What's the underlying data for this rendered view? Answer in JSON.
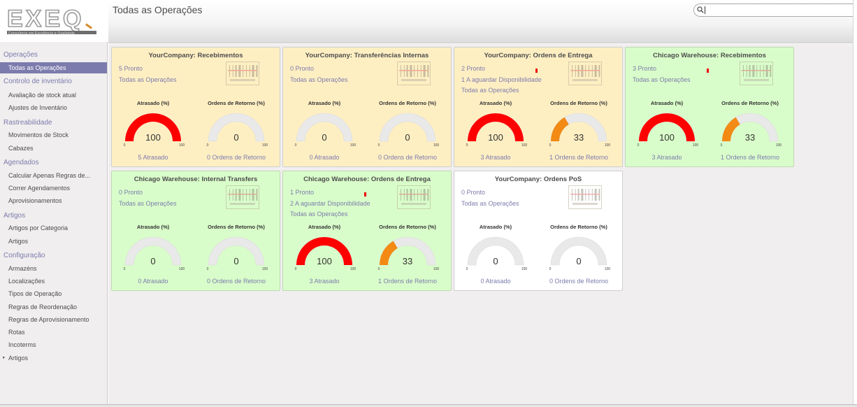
{
  "header": {
    "title": "Todas as Operações",
    "search_value": ""
  },
  "logo": {
    "word": "EXEQ",
    "subtitle": "Consultoria em Excelência e Qualidade"
  },
  "sidebar": [
    {
      "type": "section",
      "label": "Operações"
    },
    {
      "type": "item",
      "label": "Todas as Operações",
      "active": true
    },
    {
      "type": "section",
      "label": "Controlo de inventário"
    },
    {
      "type": "item",
      "label": "Avaliação de stock atual"
    },
    {
      "type": "item",
      "label": "Ajustes de Inventário"
    },
    {
      "type": "section",
      "label": "Rastreabilidade"
    },
    {
      "type": "item",
      "label": "Movimentos de Stock"
    },
    {
      "type": "item",
      "label": "Cabazes"
    },
    {
      "type": "section",
      "label": "Agendados"
    },
    {
      "type": "item",
      "label": "Calcular Apenas Regras de..."
    },
    {
      "type": "item",
      "label": "Correr Agendamentos"
    },
    {
      "type": "item",
      "label": "Aprovisionamentos"
    },
    {
      "type": "section",
      "label": "Artigos"
    },
    {
      "type": "item",
      "label": "Artigos por Categoria"
    },
    {
      "type": "item",
      "label": "Artigos"
    },
    {
      "type": "section",
      "label": "Configuração"
    },
    {
      "type": "item",
      "label": "Armazéns"
    },
    {
      "type": "item",
      "label": "Localizações"
    },
    {
      "type": "item",
      "label": "Tipos de Operação"
    },
    {
      "type": "item",
      "label": "Regras de Reordenação"
    },
    {
      "type": "item",
      "label": "Regras de Aprovisionamento"
    },
    {
      "type": "item",
      "label": "Rotas"
    },
    {
      "type": "item",
      "label": "Incoterms"
    },
    {
      "type": "item",
      "label": "Artigos",
      "caret": "▸"
    }
  ],
  "gauge_labels": {
    "late": "Atrasado (%)",
    "returns": "Ordens de Retorno (%)",
    "min": "0",
    "max": "100"
  },
  "colors": {
    "accent": "#7c7bad",
    "late_fill": "#ff0000",
    "returns_fill": "#f28a14",
    "gauge_track": "#e9e9e9",
    "card_orange": "#feefc3",
    "card_green": "#d9fdca",
    "card_white": "#ffffff"
  },
  "cards": [
    {
      "color": "orange",
      "title": "YourCompany: Recebimentos",
      "lines": [
        "5 Pronto",
        "Todas as Operações"
      ],
      "late_dot": false,
      "late_pct": 100,
      "late_text": "100",
      "late_caption": "5 Atrasado",
      "ret_pct": 0,
      "ret_text": "0",
      "ret_caption": "0 Ordens de Retorno"
    },
    {
      "color": "orange",
      "title": "YourCompany: Transferências Internas",
      "lines": [
        "0 Pronto",
        "Todas as Operações"
      ],
      "late_dot": false,
      "late_pct": 0,
      "late_text": "0",
      "late_caption": "0 Atrasado",
      "ret_pct": 0,
      "ret_text": "0",
      "ret_caption": "0 Ordens de Retorno"
    },
    {
      "color": "orange",
      "title": "YourCompany: Ordens de Entrega",
      "lines": [
        "2 Pronto",
        "1 A aguardar Disponibilidade",
        "Todas as Operações"
      ],
      "late_dot": true,
      "late_pct": 100,
      "late_text": "100",
      "late_caption": "3 Atrasado",
      "ret_pct": 33,
      "ret_text": "33",
      "ret_caption": "1 Ordens de Retorno"
    },
    {
      "color": "green",
      "title": "Chicago Warehouse: Recebimentos",
      "lines": [
        "3 Pronto",
        "Todas as Operações"
      ],
      "late_dot": true,
      "late_pct": 100,
      "late_text": "100",
      "late_caption": "3 Atrasado",
      "ret_pct": 33,
      "ret_text": "33",
      "ret_caption": "1 Ordens de Retorno"
    },
    {
      "color": "green",
      "title": "Chicago Warehouse: Internal Transfers",
      "lines": [
        "0 Pronto",
        "Todas as Operações"
      ],
      "late_dot": false,
      "late_pct": 0,
      "late_text": "0",
      "late_caption": "0 Atrasado",
      "ret_pct": 0,
      "ret_text": "0",
      "ret_caption": "0 Ordens de Retorno"
    },
    {
      "color": "green",
      "title": "Chicago Warehouse: Ordens de Entrega",
      "lines": [
        "1 Pronto",
        "2 A aguardar Disponibilidade",
        "Todas as Operações"
      ],
      "late_dot": true,
      "late_pct": 100,
      "late_text": "100",
      "late_caption": "3 Atrasado",
      "ret_pct": 33,
      "ret_text": "33",
      "ret_caption": "1 Ordens de Retorno"
    },
    {
      "color": "white",
      "title": "YourCompany: Ordens PoS",
      "lines": [
        "0 Pronto",
        "Todas as Operações"
      ],
      "late_dot": false,
      "late_pct": 0,
      "late_text": "0",
      "late_caption": "0 Atrasado",
      "ret_pct": 0,
      "ret_text": "0",
      "ret_caption": "0 Ordens de Retorno"
    }
  ]
}
